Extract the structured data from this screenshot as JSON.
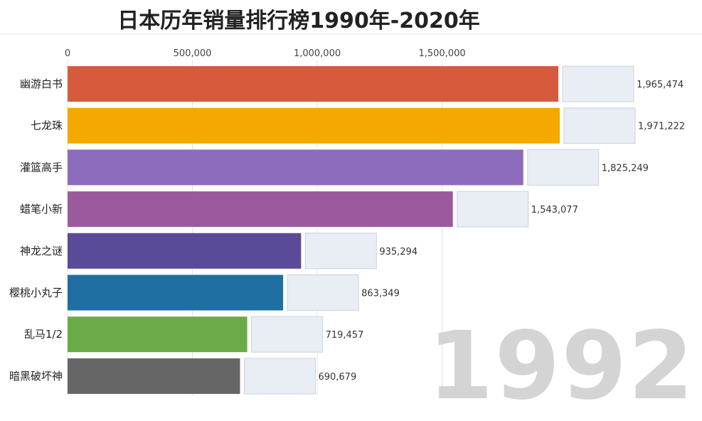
{
  "title": "日本历年销量排行榜1990年-2020年",
  "year": "1992",
  "chart_data": {
    "type": "bar",
    "orientation": "horizontal",
    "categories": [
      "幽游白书",
      "七龙珠",
      "灌篮高手",
      "蜡笔小新",
      "神龙之谜",
      "樱桃小丸子",
      "乱马1/2",
      "暗黑破坏神"
    ],
    "values": [
      1965474,
      1971222,
      1825249,
      1543077,
      935294,
      863349,
      719457,
      690679
    ],
    "value_labels": [
      "1,965,474",
      "1,971,222",
      "1,825,249",
      "1,543,077",
      "935,294",
      "863,349",
      "719,457",
      "690,679"
    ],
    "colors": [
      "#d85a3c",
      "#f5a800",
      "#8e6cbd",
      "#9c5a9e",
      "#5b4a98",
      "#1f6fa2",
      "#6bab47",
      "#666666"
    ],
    "xticks": [
      0,
      500000,
      1000000,
      1500000
    ],
    "xtick_labels": [
      "0",
      "500,000",
      "1,000,000",
      "1,500,000"
    ],
    "xlim": [
      0,
      1971222
    ],
    "grid": true,
    "axis_position": "top"
  }
}
